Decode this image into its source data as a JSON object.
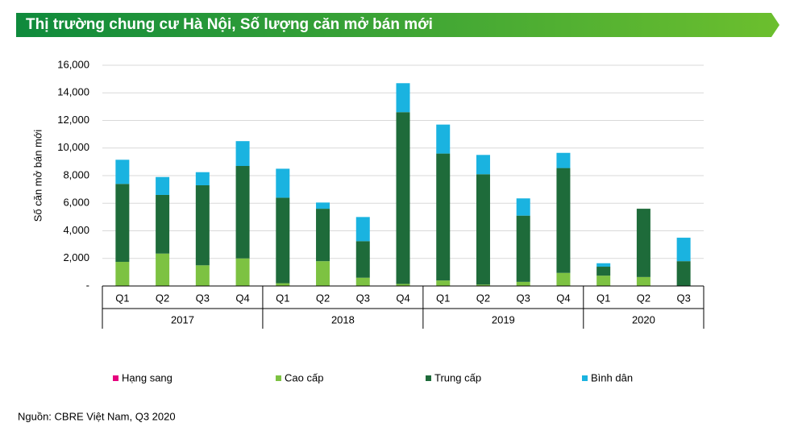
{
  "chart_data": {
    "type": "stacked_bar",
    "title": "Thị trường chung cư Hà Nội, Số lượng căn mở bán mới",
    "y_label": "Số căn mở bán mới",
    "source": "Nguồn: CBRE Việt Nam, Q3 2020",
    "groups": [
      {
        "label": "2017",
        "categories": [
          "Q1",
          "Q2",
          "Q3",
          "Q4"
        ]
      },
      {
        "label": "2018",
        "categories": [
          "Q1",
          "Q2",
          "Q3",
          "Q4"
        ]
      },
      {
        "label": "2019",
        "categories": [
          "Q1",
          "Q2",
          "Q3",
          "Q4"
        ]
      },
      {
        "label": "2020",
        "categories": [
          "Q1",
          "Q2",
          "Q3"
        ]
      }
    ],
    "series": [
      {
        "name": "Hạng sang",
        "color": "#e6007e",
        "values": [
          0,
          0,
          0,
          0,
          0,
          0,
          0,
          0,
          0,
          0,
          0,
          0,
          0,
          0,
          0
        ]
      },
      {
        "name": "Cao cấp",
        "color": "#7dc242",
        "values": [
          1750,
          2350,
          1500,
          2000,
          200,
          1800,
          600,
          150,
          400,
          100,
          300,
          950,
          750,
          650,
          0
        ]
      },
      {
        "name": "Trung cấp",
        "color": "#1e6b3a",
        "values": [
          5650,
          4250,
          5800,
          6700,
          6200,
          3800,
          2650,
          12450,
          9200,
          8000,
          4800,
          7600,
          650,
          4950,
          1800
        ]
      },
      {
        "name": "Bình dân",
        "color": "#1ab3e0",
        "values": [
          1750,
          1300,
          950,
          1800,
          2100,
          450,
          1750,
          2100,
          2100,
          1400,
          1250,
          1100,
          250,
          0,
          1700
        ]
      }
    ],
    "ylim": [
      0,
      16000
    ],
    "yticks": [
      {
        "value": 0,
        "label": "-"
      },
      {
        "value": 2000,
        "label": "2,000"
      },
      {
        "value": 4000,
        "label": "4,000"
      },
      {
        "value": 6000,
        "label": "6,000"
      },
      {
        "value": 8000,
        "label": "8,000"
      },
      {
        "value": 10000,
        "label": "10,000"
      },
      {
        "value": 12000,
        "label": "12,000"
      },
      {
        "value": 14000,
        "label": "14,000"
      },
      {
        "value": 16000,
        "label": "16,000"
      }
    ],
    "grid": true
  }
}
